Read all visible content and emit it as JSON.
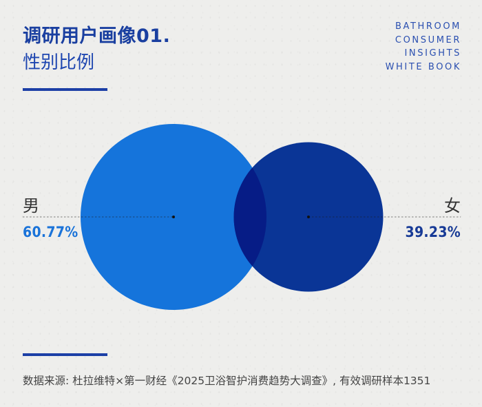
{
  "header": {
    "title": "调研用户画像01.",
    "subtitle": "性别比例"
  },
  "book_title": [
    "BATHROOM",
    "CONSUMER",
    "INSIGHTS",
    "WHITE BOOK"
  ],
  "chart_data": {
    "type": "venn",
    "series": [
      {
        "name": "男",
        "value": 60.77,
        "label": "60.77%",
        "color": "#1574db"
      },
      {
        "name": "女",
        "value": 39.23,
        "label": "39.23%",
        "color": "#0a3596"
      }
    ],
    "overlap_color": "#061c86"
  },
  "footer": {
    "source": "数据来源: 杜拉维特×第一财经《2025卫浴智护消费趋势大调查》, 有效调研样本1351"
  }
}
